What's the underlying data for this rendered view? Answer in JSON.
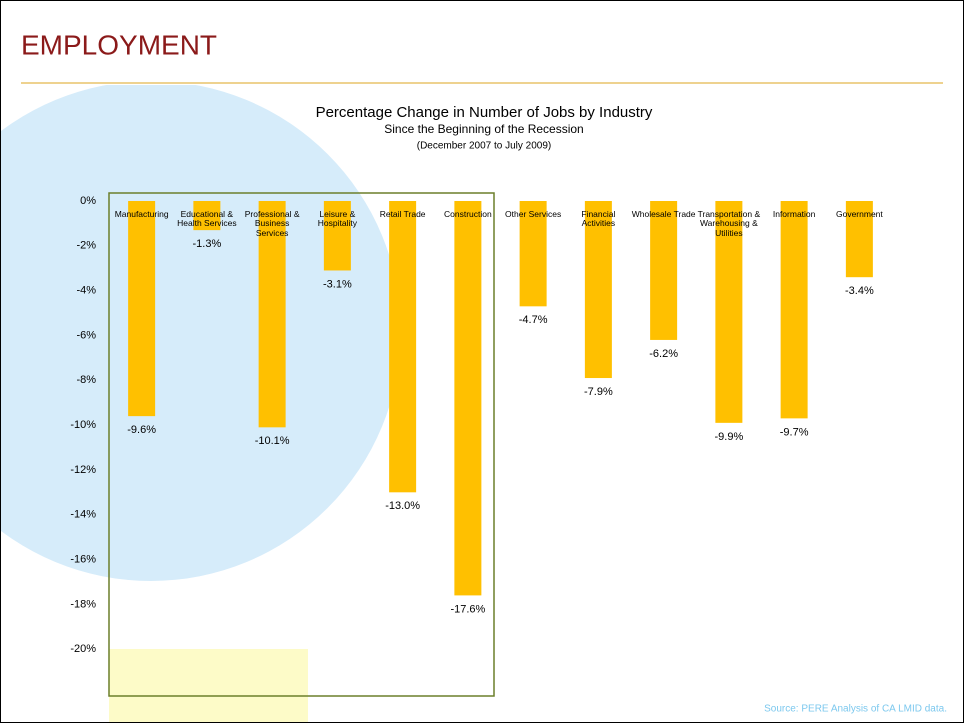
{
  "header": {
    "title": "EMPLOYMENT"
  },
  "chart_data": {
    "type": "bar",
    "title": "Percentage Change in Number of Jobs by Industry",
    "subtitle": "Since the Beginning of the Recession",
    "note": "(December 2007 to July 2009)",
    "categories": [
      "Manufacturing",
      "Educational & Health Services",
      "Professional & Business Services",
      "Leisure & Hospitality",
      "Retail Trade",
      "Construction",
      "Other Services",
      "Financial Activities",
      "Wholesale Trade",
      "Transportation & Warehousing & Utilities",
      "Information",
      "Government"
    ],
    "values": [
      -9.6,
      -1.3,
      -10.1,
      -3.1,
      -13.0,
      -17.6,
      -4.7,
      -7.9,
      -6.2,
      -9.9,
      -9.7,
      -3.4
    ],
    "value_labels": [
      "-9.6%",
      "-1.3%",
      "-10.1%",
      "-3.1%",
      "-13.0%",
      "-17.6%",
      "-4.7%",
      "-7.9%",
      "-6.2%",
      "-9.9%",
      "-9.7%",
      "-3.4%"
    ],
    "color": "#ffc000",
    "ylim": [
      -22,
      0
    ],
    "yticks": [
      {
        "value": 0,
        "label": "0%"
      },
      {
        "value": -2,
        "label": "-2%"
      },
      {
        "value": -4,
        "label": "-4%"
      },
      {
        "value": -6,
        "label": "-6%"
      },
      {
        "value": -8,
        "label": "-8%"
      },
      {
        "value": -10,
        "label": "-10%"
      },
      {
        "value": -12,
        "label": "-12%"
      },
      {
        "value": -14,
        "label": "-14%"
      },
      {
        "value": -16,
        "label": "-16%"
      },
      {
        "value": -18,
        "label": "-18%"
      },
      {
        "value": -20,
        "label": "-20%"
      }
    ],
    "grid": false
  },
  "footer": {
    "source": "Source: PERE Analysis of CA LMID data."
  }
}
